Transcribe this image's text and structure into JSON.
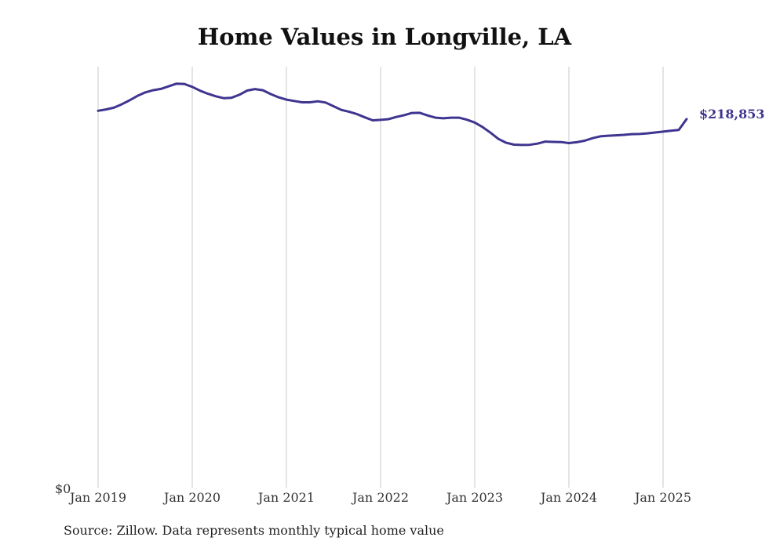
{
  "title": "Home Values in Longville, LA",
  "source": "Source: Zillow. Data represents monthly typical home value",
  "colors": {
    "line": "#3f3590",
    "grid": "#c8c8c8",
    "text": "#333333"
  },
  "chart_data": {
    "type": "line",
    "title": "Home Values in Longville, LA",
    "xlabel": "",
    "ylabel": "",
    "y_axis_label": "$0",
    "ylim": [
      0,
      250000
    ],
    "grid": "vertical",
    "legend": "none",
    "x_ticks": [
      "Jan 2019",
      "Jan 2020",
      "Jan 2021",
      "Jan 2022",
      "Jan 2023",
      "Jan 2024",
      "Jan 2025"
    ],
    "end_label": "$218,853",
    "series": [
      {
        "x": [
          "2019-01",
          "2019-02",
          "2019-03",
          "2019-04",
          "2019-05",
          "2019-06",
          "2019-07",
          "2019-08",
          "2019-09",
          "2019-10",
          "2019-11",
          "2019-12",
          "2020-01",
          "2020-02",
          "2020-03",
          "2020-04",
          "2020-05",
          "2020-06",
          "2020-07",
          "2020-08",
          "2020-09",
          "2020-10",
          "2020-11",
          "2020-12",
          "2021-01",
          "2021-02",
          "2021-03",
          "2021-04",
          "2021-05",
          "2021-06",
          "2021-07",
          "2021-08",
          "2021-09",
          "2021-10",
          "2021-11",
          "2021-12",
          "2022-01",
          "2022-02",
          "2022-03",
          "2022-04",
          "2022-05",
          "2022-06",
          "2022-07",
          "2022-08",
          "2022-09",
          "2022-10",
          "2022-11",
          "2022-12",
          "2023-01",
          "2023-02",
          "2023-03",
          "2023-04",
          "2023-05",
          "2023-06",
          "2023-07",
          "2023-08",
          "2023-09",
          "2023-10",
          "2023-11",
          "2023-12",
          "2024-01",
          "2024-02",
          "2024-03",
          "2024-04",
          "2024-05",
          "2024-06",
          "2024-07",
          "2024-08",
          "2024-09",
          "2024-10",
          "2024-11",
          "2024-12",
          "2025-01",
          "2025-02",
          "2025-03",
          "2025-04"
        ],
        "values": [
          223800,
          224600,
          225600,
          227600,
          230000,
          232600,
          234700,
          236000,
          236800,
          238300,
          239900,
          239700,
          238000,
          235700,
          233900,
          232400,
          231300,
          231500,
          233300,
          235800,
          236700,
          236000,
          233700,
          231800,
          230400,
          229600,
          228800,
          228800,
          229400,
          228700,
          226500,
          224300,
          223200,
          221800,
          219900,
          218100,
          218400,
          218800,
          220100,
          221200,
          222500,
          222600,
          221000,
          219700,
          219300,
          219700,
          219700,
          218500,
          216800,
          214100,
          210800,
          207100,
          204800,
          203700,
          203500,
          203600,
          204300,
          205500,
          205300,
          205200,
          204600,
          205100,
          206000,
          207500,
          208600,
          209000,
          209200,
          209500,
          209900,
          210000,
          210400,
          210900,
          211400,
          211900,
          212400,
          218853
        ]
      }
    ]
  }
}
